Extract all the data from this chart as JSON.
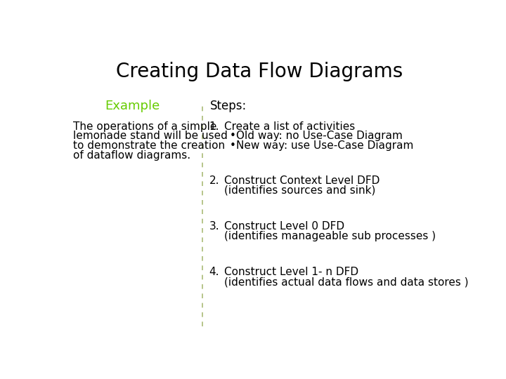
{
  "title": "Creating Data Flow Diagrams",
  "title_fontsize": 20,
  "title_color": "#000000",
  "bg_color": "#ffffff",
  "example_label": "Example",
  "example_color": "#66cc00",
  "example_fontsize": 13,
  "steps_label": "Steps:",
  "steps_fontsize": 12,
  "body_fontsize": 11,
  "body_color": "#000000",
  "example_text_lines": [
    "The operations of a simple",
    "lemonade stand will be used",
    "to demonstrate the creation",
    "of dataflow diagrams."
  ],
  "divider_color": "#aabb77",
  "steps": [
    {
      "num": "1.",
      "line1": "Create a list of activities",
      "line2": "",
      "bullets": [
        "Old way: no Use-Case Diagram",
        "New way: use Use-Case Diagram"
      ]
    },
    {
      "num": "2.",
      "line1": "Construct Context Level DFD",
      "line2": "(identifies sources and sink)",
      "bullets": []
    },
    {
      "num": "3.",
      "line1": "Construct Level 0 DFD",
      "line2": "(identifies manageable sub processes )",
      "bullets": []
    },
    {
      "num": "4.",
      "line1": "Construct Level 1- n DFD",
      "line2": "(identifies actual data flows and data stores )",
      "bullets": []
    }
  ]
}
